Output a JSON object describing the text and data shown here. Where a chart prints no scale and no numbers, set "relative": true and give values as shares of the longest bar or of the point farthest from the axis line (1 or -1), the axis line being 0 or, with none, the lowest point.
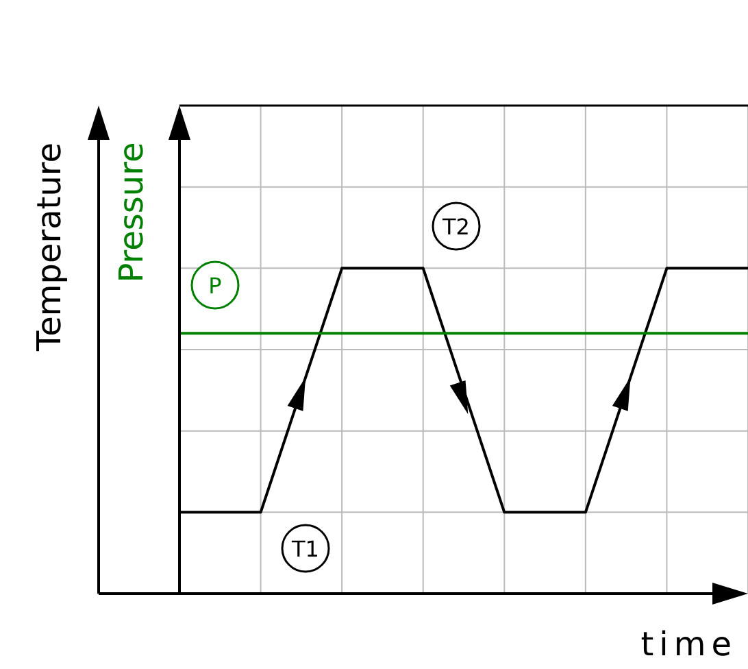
{
  "chart_data": {
    "type": "line",
    "relative": true,
    "grid": true,
    "xlabel": "time",
    "ylabel": "Temperature",
    "y2label": "Pressure",
    "categories": [
      null,
      null,
      null,
      null,
      null,
      null,
      null,
      null
    ],
    "series": [
      {
        "color": "#000000",
        "values": [
          0.25,
          0.25,
          1,
          1,
          0.25,
          0.25,
          1,
          1
        ]
      },
      {
        "color": "#008000",
        "values": [
          0.8,
          0.8,
          0.8,
          0.8,
          0.8,
          0.8,
          0.8,
          0.8
        ]
      }
    ],
    "annotations": [
      "T1",
      "T2",
      "P"
    ]
  }
}
